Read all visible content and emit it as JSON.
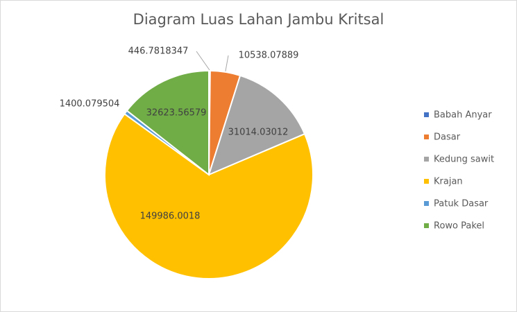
{
  "chart_data": {
    "type": "pie",
    "title": "Diagram Luas Lahan Jambu Kritsal",
    "categories": [
      "Babah Anyar",
      "Dasar",
      "Kedung sawit",
      "Krajan",
      "Patuk Dasar",
      "Rowo Pakel"
    ],
    "values": [
      446.7818347,
      10538.07889,
      31014.03012,
      149986.0018,
      1400.079504,
      32623.56579
    ],
    "data_labels": [
      "446.7818347",
      "10538.07889",
      "31014.03012",
      "149986.0018",
      "1400.079504",
      "32623.56579"
    ],
    "colors": [
      "#4472c4",
      "#ed7d31",
      "#a5a5a5",
      "#ffc000",
      "#5b9bd5",
      "#70ad47"
    ],
    "legend_position": "right",
    "start_angle": "12 o'clock, clockwise"
  }
}
